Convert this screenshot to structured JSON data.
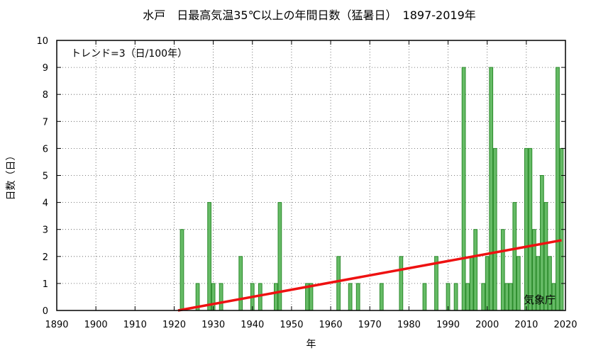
{
  "chart_data": {
    "type": "bar",
    "title": "水戸　日最高気温35℃以上の年間日数（猛暑日）　1897-2019年",
    "xlabel": "年",
    "ylabel": "日数（日）",
    "trend_label": "トレンド=3（日/100年）",
    "credit": "気象庁",
    "xlim": [
      1890,
      2020
    ],
    "ylim": [
      0,
      10
    ],
    "x_ticks": [
      "1890",
      "1900",
      "1910",
      "1920",
      "1930",
      "1940",
      "1950",
      "1960",
      "1970",
      "1980",
      "1990",
      "2000",
      "2010",
      "2020"
    ],
    "y_ticks": [
      "0",
      "1",
      "2",
      "3",
      "4",
      "5",
      "6",
      "7",
      "8",
      "9",
      "10"
    ],
    "bar_color": "#66bb66",
    "bar_edge_color": "#2a8a2a",
    "trend_color": "#ee1111",
    "trend": {
      "x": [
        1921,
        2019
      ],
      "y": [
        0.0,
        2.6
      ]
    },
    "bars": [
      {
        "year": 1922,
        "value": 3
      },
      {
        "year": 1926,
        "value": 1
      },
      {
        "year": 1929,
        "value": 4
      },
      {
        "year": 1930,
        "value": 1
      },
      {
        "year": 1932,
        "value": 1
      },
      {
        "year": 1937,
        "value": 2
      },
      {
        "year": 1940,
        "value": 1
      },
      {
        "year": 1942,
        "value": 1
      },
      {
        "year": 1946,
        "value": 1
      },
      {
        "year": 1947,
        "value": 4
      },
      {
        "year": 1954,
        "value": 1
      },
      {
        "year": 1955,
        "value": 1
      },
      {
        "year": 1962,
        "value": 2
      },
      {
        "year": 1965,
        "value": 1
      },
      {
        "year": 1967,
        "value": 1
      },
      {
        "year": 1973,
        "value": 1
      },
      {
        "year": 1978,
        "value": 2
      },
      {
        "year": 1984,
        "value": 1
      },
      {
        "year": 1987,
        "value": 2
      },
      {
        "year": 1990,
        "value": 1
      },
      {
        "year": 1992,
        "value": 1
      },
      {
        "year": 1994,
        "value": 9
      },
      {
        "year": 1995,
        "value": 1
      },
      {
        "year": 1996,
        "value": 2
      },
      {
        "year": 1997,
        "value": 3
      },
      {
        "year": 1999,
        "value": 1
      },
      {
        "year": 2000,
        "value": 2
      },
      {
        "year": 2001,
        "value": 9
      },
      {
        "year": 2002,
        "value": 6
      },
      {
        "year": 2004,
        "value": 3
      },
      {
        "year": 2005,
        "value": 1
      },
      {
        "year": 2006,
        "value": 1
      },
      {
        "year": 2007,
        "value": 4
      },
      {
        "year": 2008,
        "value": 2
      },
      {
        "year": 2010,
        "value": 6
      },
      {
        "year": 2011,
        "value": 6
      },
      {
        "year": 2012,
        "value": 3
      },
      {
        "year": 2013,
        "value": 2
      },
      {
        "year": 2014,
        "value": 5
      },
      {
        "year": 2015,
        "value": 4
      },
      {
        "year": 2016,
        "value": 2
      },
      {
        "year": 2017,
        "value": 1
      },
      {
        "year": 2018,
        "value": 9
      },
      {
        "year": 2019,
        "value": 6
      }
    ]
  }
}
